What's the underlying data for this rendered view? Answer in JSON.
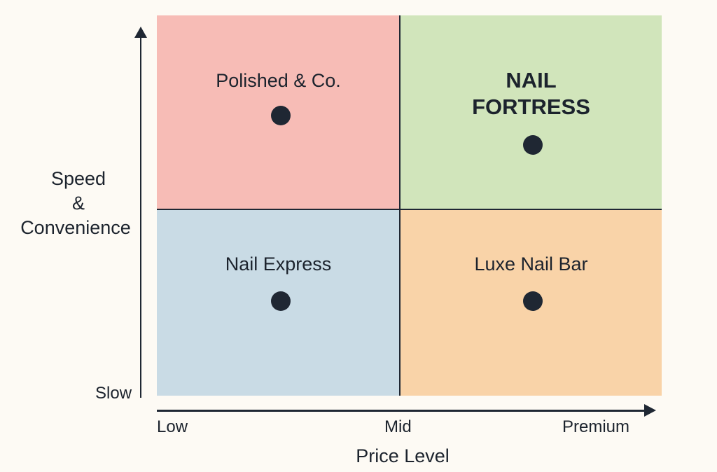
{
  "colors": {
    "background": "#fdfaf4",
    "top_left": "#f7bcb6",
    "top_right": "#d1e5bb",
    "bottom_left": "#c9dbe5",
    "bottom_right": "#f9d3a8",
    "dot": "#1f2733"
  },
  "y_axis": {
    "label_line1": "Speed",
    "label_line2": "&",
    "label_line3": "Convenience",
    "low_label": "Slow"
  },
  "x_axis": {
    "label": "Price Level",
    "ticks": [
      "Low",
      "Mid",
      "Premium"
    ]
  },
  "quadrants": [
    {
      "name": "Polished & Co."
    },
    {
      "name_line1": "NAIL",
      "name_line2": "FORTRESS",
      "highlighted": true
    },
    {
      "name": "Nail Express"
    },
    {
      "name": "Luxe Nail Bar"
    }
  ]
}
